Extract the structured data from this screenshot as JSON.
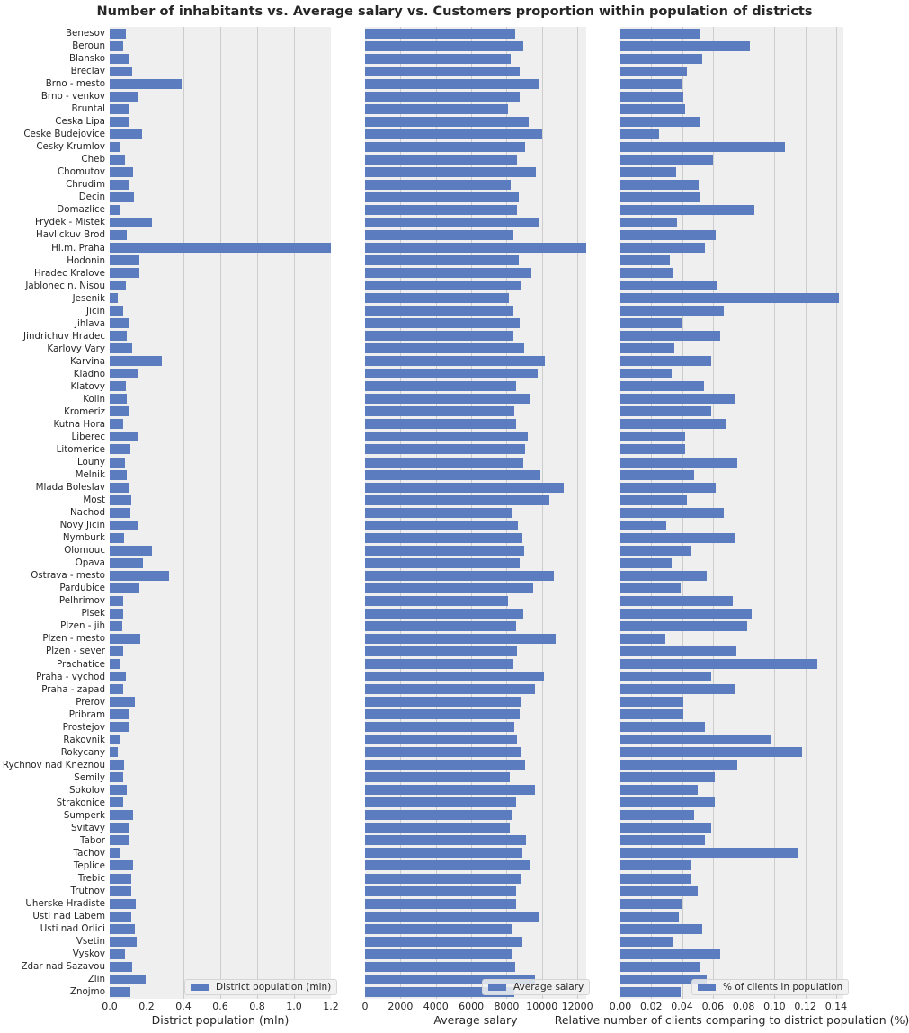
{
  "title": "Number of inhabitants vs. Average salary vs. Customers proportion within population of districts",
  "chart_data": [
    {
      "type": "bar",
      "orientation": "horizontal",
      "xlabel": "District population (mln)",
      "xlim": [
        0,
        1.2
      ],
      "xticks": [
        "0.0",
        "0.2",
        "0.4",
        "0.6",
        "0.8",
        "1.0",
        "1.2"
      ],
      "legend": "District population (mln)",
      "legend_position": "lower right",
      "grid": true
    },
    {
      "type": "bar",
      "orientation": "horizontal",
      "xlabel": "Average salary",
      "xlim": [
        0,
        12500
      ],
      "xticks": [
        "0",
        "2000",
        "4000",
        "6000",
        "8000",
        "10000",
        "12000"
      ],
      "legend": "Average salary",
      "legend_position": "lower right",
      "grid": true
    },
    {
      "type": "bar",
      "orientation": "horizontal",
      "xlabel": "Relative number of clients comparing to district population (%)",
      "xlim": [
        0,
        0.145
      ],
      "xticks": [
        "0.00",
        "0.02",
        "0.04",
        "0.06",
        "0.08",
        "0.10",
        "0.12",
        "0.14"
      ],
      "legend": "% of clients in population",
      "legend_position": "lower right",
      "grid": true
    }
  ],
  "categories": [
    "Benesov",
    "Beroun",
    "Blansko",
    "Breclav",
    "Brno - mesto",
    "Brno - venkov",
    "Bruntal",
    "Ceska Lipa",
    "Ceske Budejovice",
    "Cesky Krumlov",
    "Cheb",
    "Chomutov",
    "Chrudim",
    "Decin",
    "Domazlice",
    "Frydek - Mistek",
    "Havlickuv Brod",
    "Hl.m. Praha",
    "Hodonin",
    "Hradec Kralove",
    "Jablonec n. Nisou",
    "Jesenik",
    "Jicin",
    "Jihlava",
    "Jindrichuv Hradec",
    "Karlovy Vary",
    "Karvina",
    "Kladno",
    "Klatovy",
    "Kolin",
    "Kromeriz",
    "Kutna Hora",
    "Liberec",
    "Litomerice",
    "Louny",
    "Melnik",
    "Mlada Boleslav",
    "Most",
    "Nachod",
    "Novy Jicin",
    "Nymburk",
    "Olomouc",
    "Opava",
    "Ostrava - mesto",
    "Pardubice",
    "Pelhrimov",
    "Pisek",
    "Plzen - jih",
    "Plzen - mesto",
    "Plzen - sever",
    "Prachatice",
    "Praha - vychod",
    "Praha - zapad",
    "Prerov",
    "Pribram",
    "Prostejov",
    "Rakovnik",
    "Rokycany",
    "Rychnov nad Kneznou",
    "Semily",
    "Sokolov",
    "Strakonice",
    "Sumperk",
    "Svitavy",
    "Tabor",
    "Tachov",
    "Teplice",
    "Trebic",
    "Trutnov",
    "Uherske Hradiste",
    "Usti nad Labem",
    "Usti nad Orlici",
    "Vsetin",
    "Vyskov",
    "Zdar nad Sazavou",
    "Zlin",
    "Znojmo"
  ],
  "series": [
    {
      "name": "District population (mln)",
      "values": [
        0.089,
        0.075,
        0.107,
        0.124,
        0.388,
        0.157,
        0.104,
        0.104,
        0.178,
        0.059,
        0.085,
        0.125,
        0.105,
        0.133,
        0.053,
        0.228,
        0.095,
        1.204,
        0.162,
        0.162,
        0.089,
        0.042,
        0.075,
        0.109,
        0.095,
        0.122,
        0.285,
        0.15,
        0.089,
        0.095,
        0.108,
        0.075,
        0.157,
        0.114,
        0.085,
        0.095,
        0.109,
        0.119,
        0.113,
        0.157,
        0.08,
        0.227,
        0.182,
        0.324,
        0.162,
        0.074,
        0.071,
        0.068,
        0.168,
        0.071,
        0.052,
        0.089,
        0.075,
        0.137,
        0.108,
        0.108,
        0.055,
        0.046,
        0.08,
        0.075,
        0.094,
        0.071,
        0.128,
        0.103,
        0.104,
        0.052,
        0.128,
        0.118,
        0.118,
        0.142,
        0.118,
        0.137,
        0.147,
        0.085,
        0.123,
        0.197,
        0.114
      ]
    },
    {
      "name": "Average salary",
      "values": [
        8490,
        8950,
        8240,
        8740,
        9860,
        8740,
        8080,
        9250,
        10010,
        9050,
        8590,
        9660,
        8240,
        8690,
        8590,
        9860,
        8390,
        12500,
        8690,
        9410,
        8850,
        8130,
        8390,
        8740,
        8390,
        9000,
        10170,
        9760,
        8540,
        9300,
        8440,
        8540,
        9200,
        9050,
        8950,
        9910,
        11240,
        10420,
        8340,
        8640,
        8900,
        9000,
        8740,
        10680,
        9510,
        8080,
        8950,
        8540,
        10780,
        8590,
        8390,
        10120,
        9610,
        8800,
        8740,
        8440,
        8590,
        8850,
        9050,
        8190,
        9610,
        8540,
        8340,
        8190,
        9100,
        8900,
        9300,
        8800,
        8540,
        8540,
        9810,
        8340,
        8900,
        8290,
        8490,
        9610,
        8440
      ]
    },
    {
      "name": "% of clients in population",
      "values": [
        0.052,
        0.084,
        0.053,
        0.043,
        0.04,
        0.041,
        0.042,
        0.052,
        0.025,
        0.107,
        0.06,
        0.036,
        0.051,
        0.052,
        0.087,
        0.037,
        0.062,
        0.055,
        0.032,
        0.034,
        0.063,
        0.142,
        0.067,
        0.04,
        0.065,
        0.035,
        0.059,
        0.033,
        0.054,
        0.074,
        0.059,
        0.068,
        0.042,
        0.042,
        0.076,
        0.048,
        0.062,
        0.043,
        0.067,
        0.03,
        0.074,
        0.046,
        0.033,
        0.056,
        0.039,
        0.073,
        0.085,
        0.082,
        0.029,
        0.075,
        0.128,
        0.059,
        0.074,
        0.041,
        0.041,
        0.055,
        0.098,
        0.118,
        0.076,
        0.061,
        0.05,
        0.061,
        0.048,
        0.059,
        0.055,
        0.115,
        0.046,
        0.046,
        0.05,
        0.04,
        0.038,
        0.053,
        0.034,
        0.065,
        0.052,
        0.056,
        0.039
      ]
    }
  ],
  "colors": {
    "bar": "#5b7dc0",
    "panel_bg": "#efefef",
    "grid": "#cccccc"
  }
}
